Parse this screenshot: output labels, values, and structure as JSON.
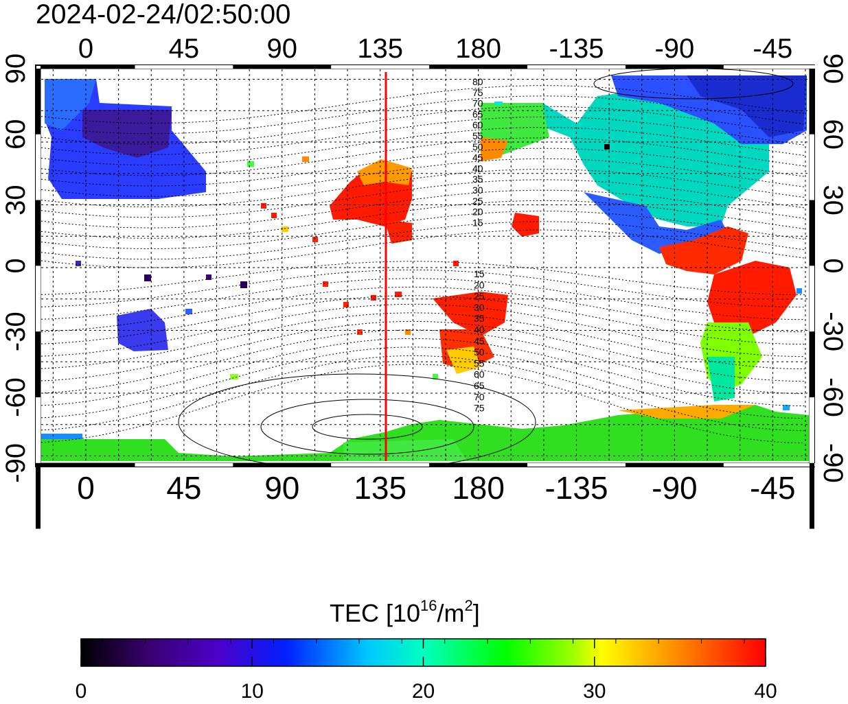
{
  "timestamp": "2024-02-24/02:50:00",
  "map": {
    "top_lon_ticks": [
      "0",
      "45",
      "90",
      "135",
      "180",
      "-135",
      "-90",
      "-45"
    ],
    "bottom_lon_ticks": [
      "0",
      "45",
      "90",
      "135",
      "180",
      "-135",
      "-90",
      "-45"
    ],
    "left_lat_ticks": [
      "90",
      "60",
      "30",
      "0",
      "-30",
      "-60",
      "-90"
    ],
    "right_lat_ticks": [
      "90",
      "60",
      "30",
      "0",
      "-30",
      "-60",
      "-90"
    ],
    "contour_labels_north": [
      "80",
      "75",
      "70",
      "65",
      "60",
      "55",
      "50",
      "45",
      "40",
      "35",
      "30",
      "25",
      "20",
      "15"
    ],
    "contour_labels_south": [
      "15",
      "20",
      "25",
      "30",
      "35",
      "40",
      "45",
      "50",
      "55",
      "60",
      "65",
      "70",
      "75"
    ],
    "terminator_color": "#ff0000",
    "terminator_lon": 135
  },
  "colorbar": {
    "title_prefix": "TEC  [10",
    "title_sup1": "16",
    "title_mid": "/m",
    "title_sup2": "2",
    "title_suffix": "]",
    "tick_labels": [
      "0",
      "10",
      "20",
      "30",
      "40"
    ],
    "range": [
      0,
      40
    ],
    "colormap": [
      "#000000",
      "#4b0082",
      "#0000ff",
      "#00ffff",
      "#00ff00",
      "#ffff00",
      "#ff8000",
      "#ff0000"
    ]
  }
}
